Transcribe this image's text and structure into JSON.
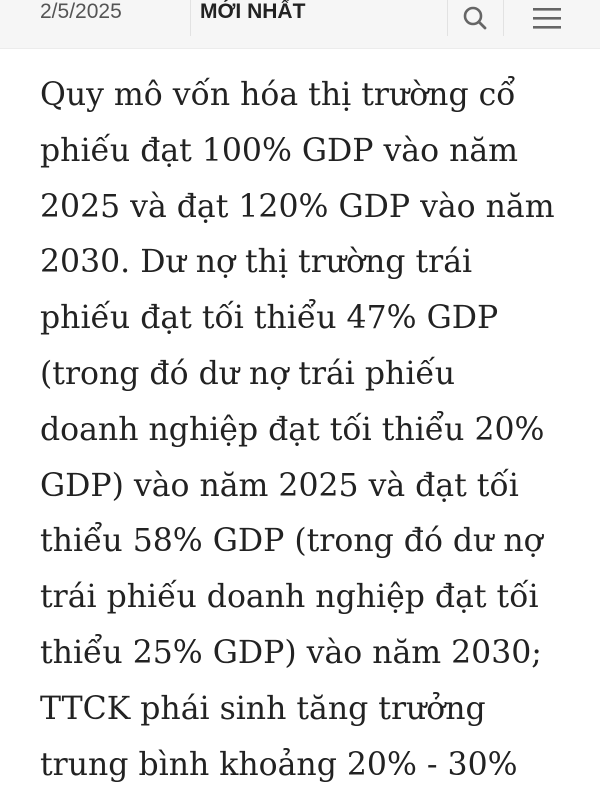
{
  "header": {
    "date": "2/5/2025",
    "latest_label": "MỚI NHẤT",
    "search_icon": "search-icon",
    "menu_icon": "hamburger-menu-icon"
  },
  "article": {
    "lines": [
      "Quy mô vốn hóa thị trường cổ",
      "phiếu đạt 100% GDP vào năm",
      "2025 và đạt 120% GDP vào năm",
      "2030. Dư nợ thị trường trái",
      "phiếu đạt tối thiểu 47% GDP",
      "(trong đó dư nợ trái phiếu",
      "doanh nghiệp đạt tối thiểu 20%",
      "GDP) vào năm 2025 và đạt tối",
      "thiểu 58% GDP (trong đó dư nợ",
      "trái phiếu doanh nghiệp đạt tối",
      "thiểu 25% GDP) vào năm 2030;",
      "TTCK phái sinh tăng trưởng",
      "trung bình khoảng 20% - 30%"
    ]
  }
}
